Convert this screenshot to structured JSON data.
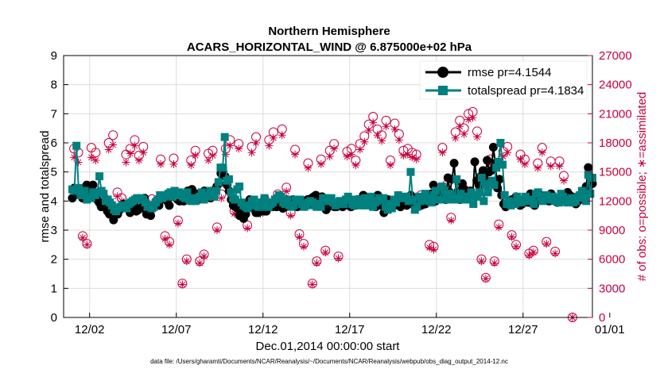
{
  "chart_data": {
    "type": "line",
    "title": "Northern Hemisphere",
    "subtitle": "ACARS_HORIZONTAL_WIND @ 6.875000e+02 hPa",
    "xlabel": "Dec.01,2014 00:00:00 start",
    "ylabel": "rmse and totalspread",
    "ylabel_right": "# of obs: o=possible; ∗=assimilated",
    "footer": "data file: /Users/gharamti/Documents/NCAR/Reanalysis/~/Documents/NCAR/Reanalysis/webpub/obs_diag_output_2014-12.nc",
    "xlim": [
      0.5,
      31.0
    ],
    "ylim": [
      0,
      9
    ],
    "ylim_right": [
      0,
      27000
    ],
    "x_ticks": [
      2,
      7,
      12,
      17,
      22,
      27,
      32
    ],
    "x_tick_labels": [
      "12/02",
      "12/07",
      "12/12",
      "12/17",
      "12/22",
      "12/27",
      "01/01"
    ],
    "y_ticks": [
      "0",
      "1",
      "2",
      "3",
      "4",
      "5",
      "6",
      "7",
      "8",
      "9"
    ],
    "y_ticks_right": [
      "0",
      "3000",
      "6000",
      "9000",
      "12000",
      "15000",
      "18000",
      "21000",
      "24000",
      "27000"
    ],
    "grid": true,
    "legend_position": "top-right",
    "colors": {
      "rmse": "#000000",
      "totalspread": "#00807f",
      "obs": "#c8003c"
    },
    "series": [
      {
        "name": "rmse pr=4.1544",
        "marker": "circle",
        "values": [
          4.1,
          4.45,
          4.25,
          4.35,
          4.2,
          4.1,
          4.25,
          4.55,
          4.1,
          4.3,
          4.55,
          4.25,
          4.05,
          3.95,
          3.8,
          3.95,
          3.8,
          3.65,
          3.55,
          3.8,
          3.35,
          3.7,
          3.55,
          3.7,
          3.75,
          3.9,
          3.85,
          3.75,
          3.6,
          3.8,
          3.85,
          3.65,
          3.7,
          3.75,
          3.8,
          4.1,
          3.55,
          3.8,
          3.5,
          3.75,
          3.9,
          3.9,
          3.85,
          4.05,
          4.1,
          4.15,
          4.0,
          3.85,
          4.15,
          4.3,
          4.2,
          4.05,
          4.0,
          4.15,
          4.0,
          4.25,
          4.35,
          4.05,
          4.4,
          4.1,
          4.25,
          4.05,
          4.2,
          4.15,
          4.35,
          4.25,
          4.2,
          4.1,
          4.35,
          4.35,
          4.5,
          4.6,
          4.95,
          5.0,
          4.85,
          4.55,
          4.35,
          4.05,
          3.85,
          3.8,
          3.75,
          3.5,
          3.6,
          3.4,
          3.55,
          3.9,
          4.05,
          3.85,
          3.75,
          3.6,
          3.6,
          3.8,
          3.7,
          3.65,
          3.65,
          3.9,
          3.9,
          3.8,
          3.85,
          3.8,
          4.0,
          3.85,
          3.75,
          3.8,
          4.05,
          4.0,
          3.9,
          4.05,
          3.9,
          3.8,
          3.95,
          4.0,
          3.9,
          4.0,
          4.05,
          3.9,
          4.1,
          4.15,
          4.2,
          3.95,
          3.9,
          4.15,
          3.8,
          3.7,
          3.8,
          3.95,
          3.85,
          3.8,
          3.8,
          3.95,
          3.85,
          3.8,
          3.95,
          3.9,
          3.85,
          3.8,
          4.0,
          3.85,
          4.05,
          3.95,
          4.05,
          4.2,
          4.1,
          4.1,
          3.9,
          4.0,
          3.85,
          3.8,
          4.2,
          4.0,
          3.85,
          3.6,
          3.7,
          4.05,
          3.75,
          3.8,
          3.85,
          4.05,
          3.95,
          3.8,
          4.0,
          3.9,
          3.85,
          3.9,
          4.2,
          3.95,
          4.1,
          4.05,
          4.0,
          3.85,
          3.95,
          3.9,
          4.0,
          4.15,
          4.25,
          4.55,
          4.0,
          4.15,
          4.35,
          4.4,
          4.25,
          4.05,
          4.8,
          4.3,
          4.75,
          5.3,
          4.2,
          4.35,
          4.05,
          4.6,
          4.4,
          4.2,
          4.1,
          4.35,
          4.2,
          5.35,
          4.7,
          4.55,
          4.85,
          5.05,
          4.75,
          5.4,
          5.0,
          5.05,
          5.85,
          5.3,
          4.45,
          4.75,
          4.2,
          3.9,
          3.8,
          3.9,
          3.95,
          4.05,
          3.95,
          4.15,
          4.0,
          3.85,
          3.9,
          4.05,
          4.1,
          3.95,
          4.25,
          3.95,
          3.85,
          4.0,
          4.05,
          4.2,
          4.15,
          4.1,
          4.05,
          4.0,
          4.25,
          4.15,
          4.0,
          3.95,
          4.05,
          4.05,
          4.1,
          4.15,
          4.3,
          4.2,
          4.15,
          4.0,
          3.9,
          4.0,
          4.05,
          4.2,
          4.25,
          4.5,
          5.15,
          4.65,
          4.6
        ]
      },
      {
        "name": "totalspread pr=4.1834",
        "marker": "square",
        "values": [
          4.4,
          4.35,
          5.9,
          4.45,
          4.2,
          4.3,
          4.35,
          4.05,
          4.15,
          4.1,
          4.3,
          4.2,
          4.3,
          4.85,
          4.35,
          4.25,
          4.0,
          4.05,
          3.95,
          3.85,
          3.7,
          3.65,
          3.75,
          3.8,
          3.85,
          3.85,
          3.75,
          3.9,
          3.95,
          4.0,
          4.05,
          4.1,
          4.05,
          4.1,
          4.05,
          3.95,
          3.8,
          3.85,
          3.75,
          3.8,
          3.95,
          4.05,
          4.2,
          4.1,
          4.15,
          4.2,
          4.25,
          4.3,
          4.15,
          4.35,
          4.2,
          4.3,
          4.25,
          4.15,
          4.1,
          4.3,
          4.05,
          4.0,
          4.1,
          4.0,
          4.1,
          4.15,
          4.3,
          4.05,
          4.2,
          4.15,
          4.35,
          4.2,
          4.15,
          4.35,
          4.65,
          5.15,
          5.15,
          6.2,
          4.7,
          4.75,
          4.3,
          4.1,
          4.05,
          4.4,
          4.5,
          3.95,
          3.85,
          3.8,
          3.75,
          3.85,
          4.0,
          4.05,
          3.85,
          3.8,
          3.95,
          3.8,
          4.1,
          3.85,
          3.8,
          3.9,
          3.95,
          4.05,
          4.1,
          4.2,
          4.15,
          3.95,
          3.9,
          4.05,
          3.85,
          3.8,
          3.85,
          4.05,
          4.0,
          4.05,
          3.9,
          3.8,
          3.85,
          3.95,
          4.0,
          3.95,
          3.85,
          3.8,
          3.9,
          3.8,
          4.1,
          4.1,
          4.0,
          4.0,
          4.1,
          3.95,
          3.85,
          3.9,
          4.0,
          4.0,
          3.9,
          4.05,
          4.15,
          4.05,
          3.9,
          3.85,
          4.05,
          4.05,
          3.85,
          3.9,
          4.1,
          3.85,
          4.05,
          4.15,
          3.8,
          3.95,
          4.0,
          4.1,
          4.05,
          4.1,
          3.8,
          3.7,
          3.9,
          3.75,
          4.05,
          3.95,
          4.2,
          4.1,
          4.15,
          4.1,
          4.15,
          4.0,
          5.0,
          4.05,
          3.7,
          3.8,
          4.15,
          4.0,
          4.05,
          4.25,
          4.1,
          4.0,
          3.95,
          4.2,
          4.35,
          4.05,
          4.05,
          4.5,
          4.35,
          4.1,
          4.05,
          4.25,
          4.15,
          4.05,
          4.75,
          4.1,
          4.25,
          4.05,
          4.15,
          4.05,
          4.15,
          4.3,
          3.9,
          4.2,
          4.15,
          4.3,
          4.8,
          4.0,
          4.55,
          4.3,
          4.6,
          4.7,
          4.55,
          5.15,
          5.35,
          6.0,
          5.25,
          4.2,
          3.9,
          4.0,
          3.85,
          3.95,
          3.9,
          4.15,
          4.05,
          3.95,
          4.0,
          4.15,
          4.05,
          4.0,
          4.05,
          3.9,
          4.25,
          4.3,
          4.15,
          4.0,
          4.05,
          4.2,
          4.1,
          4.05,
          4.15,
          4.0,
          4.1,
          3.95,
          4.25,
          4.15,
          4.0,
          3.95,
          4.05,
          4.1,
          3.95,
          4.0,
          4.15,
          4.2,
          4.35,
          4.1,
          4.0,
          4.9,
          4.25,
          4.8
        ]
      },
      {
        "name": "obs possible",
        "axis": "right",
        "marker": "open-circle",
        "values": [
          17400,
          17000,
          8400,
          7600,
          17500,
          17000,
          12400,
          12300,
          18000,
          18800,
          12900,
          12300,
          16800,
          17400,
          18300,
          16700,
          17600,
          11200,
          12200,
          12000,
          16300,
          8400,
          7800,
          16400,
          10000,
          3500,
          6000,
          16200,
          17200,
          5800,
          6500,
          16900,
          17200,
          9300,
          12700,
          17400,
          18300,
          11000,
          17900,
          10800,
          9500,
          17600,
          18600,
          11000,
          12200,
          18300,
          19100,
          12700,
          19400,
          13400,
          10800,
          17300,
          8600,
          7600,
          15900,
          3500,
          5800,
          16300,
          6900,
          17200,
          17900,
          6300,
          11700,
          17100,
          17400,
          16200,
          17900,
          18700,
          19900,
          20700,
          19400,
          18800,
          20300,
          16200,
          20000,
          18900,
          17200,
          17400,
          17000,
          16800,
          12600,
          12000,
          7500,
          7300,
          12800,
          17500,
          13700,
          10300,
          19100,
          20300,
          19500,
          21000,
          21200,
          19200,
          6000,
          4100,
          16300,
          5800,
          9600,
          17100,
          17600,
          8500,
          7500,
          16800,
          16300,
          6600,
          6900,
          15900,
          17500,
          7800,
          16100,
          6800,
          16100,
          14600,
          12400,
          0
        ]
      },
      {
        "name": "obs assimilated",
        "axis": "right",
        "marker": "asterisk",
        "values": [
          16500,
          16000,
          8200,
          7500,
          16500,
          16200,
          12000,
          11900,
          17300,
          17800,
          12500,
          12000,
          16000,
          16900,
          17700,
          16200,
          17000,
          10900,
          11800,
          11700,
          15800,
          8100,
          7500,
          15800,
          9700,
          3400,
          5800,
          15700,
          16700,
          5600,
          6300,
          16200,
          16700,
          9000,
          12300,
          16800,
          17700,
          10700,
          17400,
          10500,
          9200,
          17000,
          18000,
          10700,
          11800,
          17700,
          18500,
          12300,
          18800,
          13000,
          10500,
          16800,
          8300,
          7300,
          15400,
          3400,
          5600,
          15800,
          6700,
          16600,
          17400,
          6100,
          11400,
          16600,
          16800,
          15700,
          17300,
          18100,
          19300,
          20100,
          18800,
          18200,
          19700,
          15700,
          19400,
          18300,
          16700,
          16800,
          16500,
          16300,
          12200,
          11600,
          7200,
          7000,
          12400,
          17000,
          13300,
          10000,
          18500,
          19700,
          18900,
          20400,
          20600,
          18600,
          5800,
          4000,
          15800,
          5600,
          9300,
          16600,
          17000,
          8300,
          7300,
          16300,
          15800,
          6400,
          6700,
          15400,
          17000,
          7600,
          15600,
          6600,
          15600,
          14100,
          12000,
          0
        ]
      }
    ],
    "obs_x_start": 1.1,
    "obs_x_step": 0.25
  }
}
